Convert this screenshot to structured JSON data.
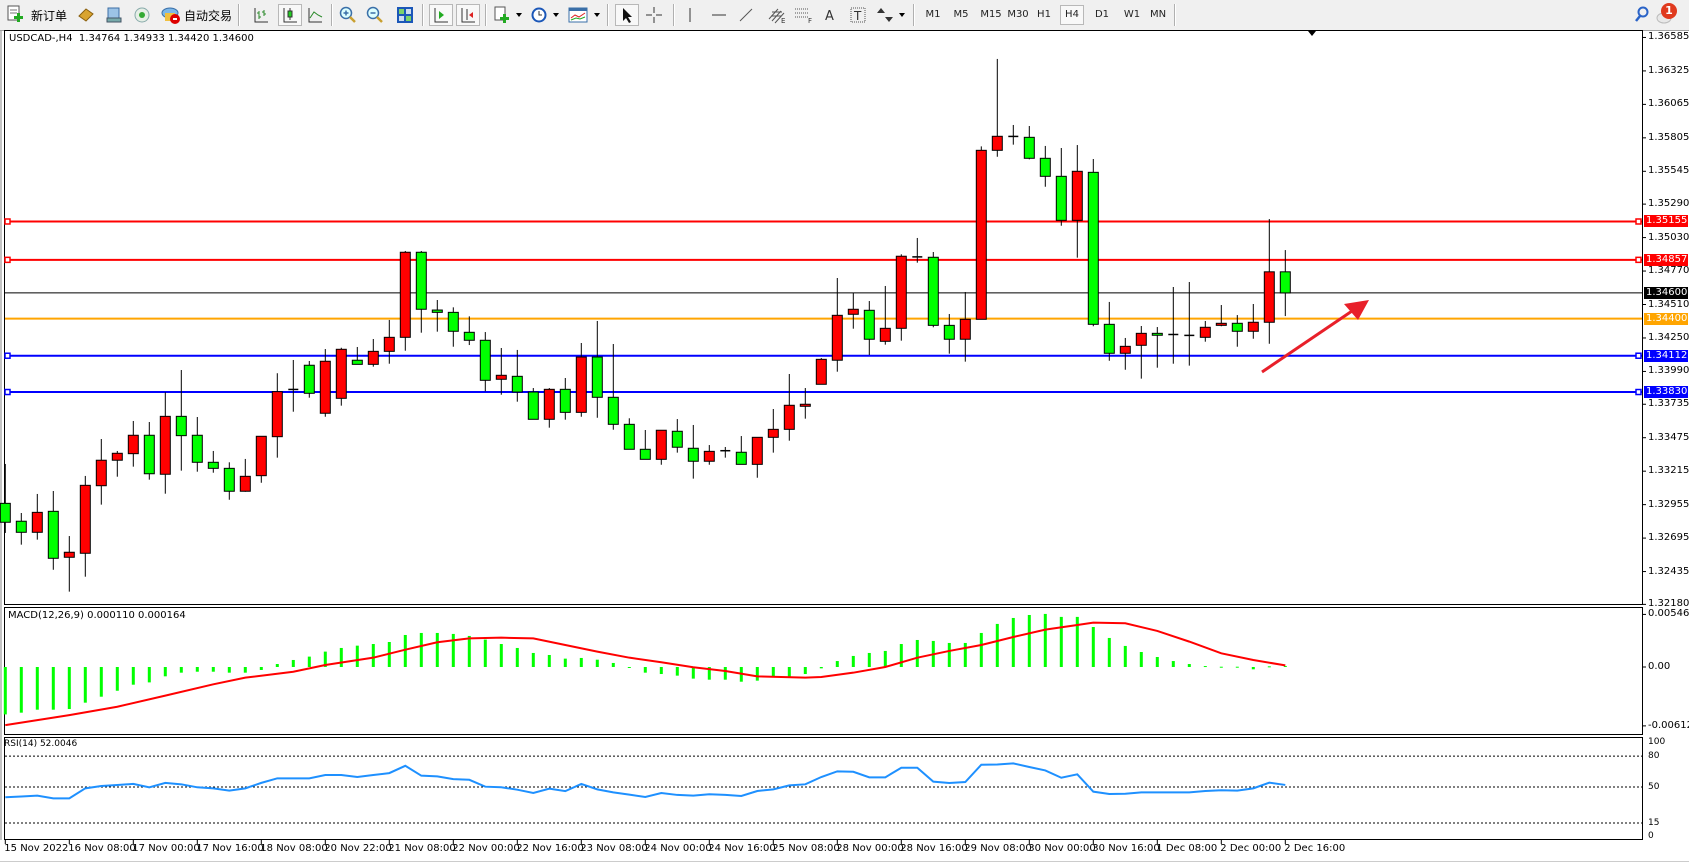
{
  "toolbar": {
    "new_order_label": "新订单",
    "auto_trading_label": "自动交易",
    "icons": [
      "new-order-icon",
      "market-watch-icon",
      "navigator-icon",
      "signals-icon",
      "auto-trading-icon",
      "bar-chart-icon",
      "candlestick-chart-icon",
      "line-chart-icon",
      "zoom-in-icon",
      "zoom-out-icon",
      "tile-windows-icon",
      "auto-scroll-icon",
      "chart-shift-icon",
      "indicators-icon",
      "periods-icon",
      "templates-icon",
      "cursor-icon",
      "crosshair-icon",
      "vertical-line-icon",
      "horizontal-line-icon",
      "trendline-icon",
      "fibonacci-channel-icon",
      "fibonacci-retracement-icon",
      "text-icon",
      "text-label-icon",
      "arrows-icon",
      "search-icon",
      "notifications-icon"
    ],
    "timeframes": [
      "M1",
      "M5",
      "M15",
      "M30",
      "H1",
      "H4",
      "D1",
      "W1",
      "MN"
    ],
    "active_timeframe": "H4",
    "notification_count": "1"
  },
  "chart": {
    "header": "USDCAD-,H4  1.34764 1.34933 1.34420 1.34600",
    "symbol": "USDCAD-",
    "timeframe": "H4",
    "ohlc": {
      "open": "1.34764",
      "high": "1.34933",
      "low": "1.34420",
      "close": "1.34600"
    },
    "price_ticks": [
      "1.36585",
      "1.36325",
      "1.36065",
      "1.35805",
      "1.35545",
      "1.35290",
      "1.35030",
      "1.34770",
      "1.34510",
      "1.34250",
      "1.33990",
      "1.33735",
      "1.33475",
      "1.33215",
      "1.32955",
      "1.32695",
      "1.32435",
      "1.32180"
    ],
    "levels": [
      {
        "price": "1.35155",
        "color": "#ff0000"
      },
      {
        "price": "1.34857",
        "color": "#ff0000"
      },
      {
        "price": "1.34600",
        "color": "#000000",
        "role": "current-price"
      },
      {
        "price": "1.34400",
        "color": "#ffa500"
      },
      {
        "price": "1.34112",
        "color": "#0000ff"
      },
      {
        "price": "1.33830",
        "color": "#0000ff"
      }
    ],
    "time_labels": [
      {
        "bar": 0,
        "text": "15 Nov 2022"
      },
      {
        "bar": 4,
        "text": "16 Nov 08:00"
      },
      {
        "bar": 8,
        "text": "17 Nov 00:00"
      },
      {
        "bar": 12,
        "text": "17 Nov 16:00"
      },
      {
        "bar": 16,
        "text": "18 Nov 08:00"
      },
      {
        "bar": 20,
        "text": "20 Nov 22:00"
      },
      {
        "bar": 24,
        "text": "21 Nov 08:00"
      },
      {
        "bar": 28,
        "text": "22 Nov 00:00"
      },
      {
        "bar": 32,
        "text": "22 Nov 16:00"
      },
      {
        "bar": 36,
        "text": "23 Nov 08:00"
      },
      {
        "bar": 40,
        "text": "24 Nov 00:00"
      },
      {
        "bar": 44,
        "text": "24 Nov 16:00"
      },
      {
        "bar": 48,
        "text": "25 Nov 08:00"
      },
      {
        "bar": 52,
        "text": "28 Nov 00:00"
      },
      {
        "bar": 56,
        "text": "28 Nov 16:00"
      },
      {
        "bar": 60,
        "text": "29 Nov 08:00"
      },
      {
        "bar": 64,
        "text": "30 Nov 00:00"
      },
      {
        "bar": 68,
        "text": "30 Nov 16:00"
      },
      {
        "bar": 72,
        "text": "1 Dec 08:00"
      },
      {
        "bar": 76,
        "text": "2 Dec 00:00"
      },
      {
        "bar": 80,
        "text": "2 Dec 16:00"
      }
    ],
    "up_color": "#ff0000",
    "down_color": "#00ff00",
    "arrow_color": "#e8202a"
  },
  "chart_data": {
    "type": "candlestick",
    "candle_fields": [
      "open",
      "high",
      "low",
      "close"
    ],
    "ylim": [
      1.3218,
      1.36585
    ],
    "candles": [
      [
        1.32965,
        1.33271,
        1.32735,
        1.32818
      ],
      [
        1.32826,
        1.3289,
        1.32644,
        1.3274
      ],
      [
        1.3274,
        1.33038,
        1.32683,
        1.32895
      ],
      [
        1.32903,
        1.33061,
        1.32449,
        1.32538
      ],
      [
        1.32546,
        1.32711,
        1.32279,
        1.32585
      ],
      [
        1.32577,
        1.33178,
        1.32395,
        1.33105
      ],
      [
        1.33102,
        1.33465,
        1.32955,
        1.333
      ],
      [
        1.333,
        1.33372,
        1.33172,
        1.33354
      ],
      [
        1.33351,
        1.33605,
        1.3325,
        1.33494
      ],
      [
        1.33494,
        1.33597,
        1.33149,
        1.33195
      ],
      [
        1.33191,
        1.33828,
        1.3304,
        1.33641
      ],
      [
        1.33641,
        1.34001,
        1.33219,
        1.33491
      ],
      [
        1.33494,
        1.33636,
        1.33211,
        1.33284
      ],
      [
        1.33284,
        1.33372,
        1.33203,
        1.33237
      ],
      [
        1.33237,
        1.33284,
        1.32993,
        1.33059
      ],
      [
        1.33059,
        1.3331,
        1.33055,
        1.33175
      ],
      [
        1.3318,
        1.33488,
        1.33125,
        1.33486
      ],
      [
        1.33483,
        1.33976,
        1.3332,
        1.33833
      ],
      [
        1.3384,
        1.34079,
        1.33677,
        1.3385
      ],
      [
        1.34038,
        1.34071,
        1.33786,
        1.3382
      ],
      [
        1.33665,
        1.34164,
        1.33638,
        1.34069
      ],
      [
        1.33781,
        1.34174,
        1.33724,
        1.34162
      ],
      [
        1.34077,
        1.3418,
        1.34045,
        1.34045
      ],
      [
        1.34045,
        1.34242,
        1.34027,
        1.34146
      ],
      [
        1.34146,
        1.3439,
        1.3405,
        1.34255
      ],
      [
        1.34255,
        1.34926,
        1.34151,
        1.34916
      ],
      [
        1.34916,
        1.34926,
        1.34291,
        1.34473
      ],
      [
        1.34467,
        1.34545,
        1.34299,
        1.34449
      ],
      [
        1.34449,
        1.34488,
        1.34182,
        1.34302
      ],
      [
        1.34294,
        1.34418,
        1.34195,
        1.34232
      ],
      [
        1.34232,
        1.34296,
        1.33836,
        1.33921
      ],
      [
        1.33929,
        1.34172,
        1.33809,
        1.3396
      ],
      [
        1.33952,
        1.34157,
        1.33755,
        1.3383
      ],
      [
        1.3383,
        1.33861,
        1.33618,
        1.33618
      ],
      [
        1.33618,
        1.33861,
        1.33553,
        1.33851
      ],
      [
        1.33851,
        1.33939,
        1.33615,
        1.33672
      ],
      [
        1.33672,
        1.34211,
        1.33638,
        1.34102
      ],
      [
        1.34102,
        1.34382,
        1.3363,
        1.33789
      ],
      [
        1.33789,
        1.34203,
        1.33537,
        1.33579
      ],
      [
        1.33579,
        1.33626,
        1.33385,
        1.33385
      ],
      [
        1.33385,
        1.33535,
        1.33307,
        1.33307
      ],
      [
        1.33307,
        1.33533,
        1.33265,
        1.33533
      ],
      [
        1.33525,
        1.3362,
        1.33359,
        1.33401
      ],
      [
        1.33393,
        1.33574,
        1.33157,
        1.33292
      ],
      [
        1.33292,
        1.33418,
        1.33265,
        1.33369
      ],
      [
        1.3337,
        1.33403,
        1.3332,
        1.33374
      ],
      [
        1.33362,
        1.33488,
        1.33268,
        1.33268
      ],
      [
        1.33268,
        1.33478,
        1.33164,
        1.33478
      ],
      [
        1.33478,
        1.33698,
        1.33359,
        1.3354
      ],
      [
        1.3354,
        1.3397,
        1.33452,
        1.33727
      ],
      [
        1.33719,
        1.33861,
        1.33623,
        1.33735
      ],
      [
        1.3389,
        1.34094,
        1.3389,
        1.34084
      ],
      [
        1.34077,
        1.34716,
        1.33988,
        1.34426
      ],
      [
        1.34434,
        1.34599,
        1.34322,
        1.34473
      ],
      [
        1.34465,
        1.34537,
        1.34118,
        1.3424
      ],
      [
        1.34224,
        1.34654,
        1.34198,
        1.34325
      ],
      [
        1.34325,
        1.349,
        1.34229,
        1.34885
      ],
      [
        1.34874,
        1.35027,
        1.34835,
        1.3488
      ],
      [
        1.34877,
        1.34918,
        1.34333,
        1.34348
      ],
      [
        1.34348,
        1.34436,
        1.34128,
        1.3424
      ],
      [
        1.3424,
        1.34607,
        1.34066,
        1.34395
      ],
      [
        1.34395,
        1.35739,
        1.34395,
        1.35708
      ],
      [
        1.35708,
        1.36418,
        1.35658,
        1.35817
      ],
      [
        1.35812,
        1.35905,
        1.35752,
        1.35816
      ],
      [
        1.35809,
        1.35897,
        1.35638,
        1.35646
      ],
      [
        1.35646,
        1.35742,
        1.35425,
        1.35506
      ],
      [
        1.35506,
        1.35726,
        1.35122,
        1.35164
      ],
      [
        1.35164,
        1.35749,
        1.34874,
        1.35545
      ],
      [
        1.35537,
        1.35641,
        1.34341,
        1.34356
      ],
      [
        1.34356,
        1.3453,
        1.34073,
        1.34131
      ],
      [
        1.34131,
        1.3425,
        1.34003,
        1.34185
      ],
      [
        1.34193,
        1.34343,
        1.33934,
        1.34286
      ],
      [
        1.34286,
        1.34335,
        1.34019,
        1.34271
      ],
      [
        1.34277,
        1.34646,
        1.3405,
        1.34273
      ],
      [
        1.3427,
        1.34685,
        1.34035,
        1.34266
      ],
      [
        1.34255,
        1.34382,
        1.34221,
        1.34333
      ],
      [
        1.34348,
        1.34506,
        1.34341,
        1.34364
      ],
      [
        1.34364,
        1.34428,
        1.34182,
        1.34302
      ],
      [
        1.34302,
        1.34514,
        1.34244,
        1.34372
      ],
      [
        1.34372,
        1.35174,
        1.34205,
        1.34764
      ],
      [
        1.34764,
        1.34933,
        1.3442,
        1.346
      ]
    ],
    "macd": {
      "label": "MACD(12,26,9) 0.000110 0.000164",
      "params": "12,26,9",
      "ticks": [
        "0.005469",
        "0.00",
        "-0.006124"
      ],
      "ylim": [
        -0.006124,
        0.005469
      ],
      "histogram_color": "#00ff00",
      "signal_color": "#ff0000",
      "histogram": [
        -0.00493,
        -0.00475,
        -0.00444,
        -0.00444,
        -0.00437,
        -0.00371,
        -0.00309,
        -0.00247,
        -0.00184,
        -0.0016,
        -0.00097,
        -0.00059,
        -0.00049,
        -0.00049,
        -0.00059,
        -0.00059,
        -0.00031,
        0.00031,
        0.00073,
        0.00108,
        0.0016,
        0.00198,
        0.00222,
        0.00239,
        0.0026,
        0.00333,
        0.00354,
        0.00354,
        0.00344,
        0.00323,
        0.00285,
        0.00239,
        0.00198,
        0.00146,
        0.00125,
        0.00087,
        0.00094,
        0.00076,
        0.00042,
        -7e-05,
        -0.00059,
        -0.00073,
        -0.0009,
        -0.00121,
        -0.00132,
        -0.00132,
        -0.00153,
        -0.00142,
        -0.00108,
        -0.00108,
        -0.00073,
        -0.00014,
        0.00062,
        0.00115,
        0.00146,
        0.00167,
        0.00239,
        0.00281,
        0.00271,
        0.0025,
        0.0025,
        0.00354,
        0.00448,
        0.0051,
        0.00541,
        0.00552,
        0.00521,
        0.00521,
        0.00416,
        0.00302,
        0.00219,
        0.00156,
        0.00104,
        0.00062,
        0.00031,
        0.0001,
        3e-05,
        3e-05,
        -0.00024,
        7e-05,
        0.00011
      ],
      "signal_points": [
        [
          0,
          -0.00604
        ],
        [
          4,
          -0.005
        ],
        [
          7,
          -0.00413
        ],
        [
          10,
          -0.00298
        ],
        [
          13,
          -0.0018
        ],
        [
          15,
          -0.00111
        ],
        [
          18,
          -0.00049
        ],
        [
          20,
          0.00021
        ],
        [
          23,
          0.00097
        ],
        [
          25,
          0.0018
        ],
        [
          27,
          0.00257
        ],
        [
          29,
          0.00298
        ],
        [
          31,
          0.00305
        ],
        [
          33,
          0.00298
        ],
        [
          35,
          0.00229
        ],
        [
          37,
          0.0016
        ],
        [
          39,
          0.00097
        ],
        [
          41,
          0.00049
        ],
        [
          43,
          -3e-05
        ],
        [
          45,
          -0.00042
        ],
        [
          47,
          -0.00097
        ],
        [
          50,
          -0.00111
        ],
        [
          51,
          -0.00104
        ],
        [
          53,
          -0.00059
        ],
        [
          55,
          0.0
        ],
        [
          57,
          0.00097
        ],
        [
          59,
          0.00167
        ],
        [
          61,
          0.00229
        ],
        [
          63,
          0.00312
        ],
        [
          65,
          0.00389
        ],
        [
          67,
          0.00437
        ],
        [
          68,
          0.00462
        ],
        [
          70,
          0.00455
        ],
        [
          72,
          0.00375
        ],
        [
          74,
          0.00264
        ],
        [
          76,
          0.00142
        ],
        [
          78,
          0.00073
        ],
        [
          80,
          0.000164
        ]
      ]
    },
    "rsi": {
      "label": "RSI(14) 52.0046",
      "period": 14,
      "ticks": [
        "100",
        "80",
        "50",
        "15",
        "0"
      ],
      "levels": [
        80,
        50,
        15
      ],
      "ylim": [
        0,
        100
      ],
      "color": "#1e90ff",
      "values": [
        40,
        40.8,
        41.6,
        39,
        39,
        48.7,
        51,
        52,
        53,
        49.7,
        54,
        52.6,
        49.7,
        48.7,
        46.5,
        48.7,
        54,
        58.4,
        58.4,
        58.4,
        61.6,
        61.6,
        59.7,
        61.6,
        63.5,
        70.6,
        61,
        60.3,
        57.7,
        57,
        50.3,
        49.7,
        47.4,
        44.2,
        48.4,
        46,
        53,
        47.7,
        44.8,
        42.6,
        40.3,
        44.2,
        42.3,
        41.6,
        42.9,
        42.3,
        41.3,
        46.1,
        47.7,
        51.6,
        52.6,
        59.7,
        65.2,
        64.8,
        59.4,
        59.4,
        68.7,
        68.7,
        55.2,
        53.9,
        54.8,
        71.6,
        71.9,
        72.9,
        69.4,
        66.1,
        59,
        62.3,
        45.5,
        43.2,
        43.5,
        44.8,
        44.8,
        44.8,
        44.8,
        46.1,
        46.8,
        46.5,
        48.7,
        54.2,
        52.0046
      ]
    }
  }
}
